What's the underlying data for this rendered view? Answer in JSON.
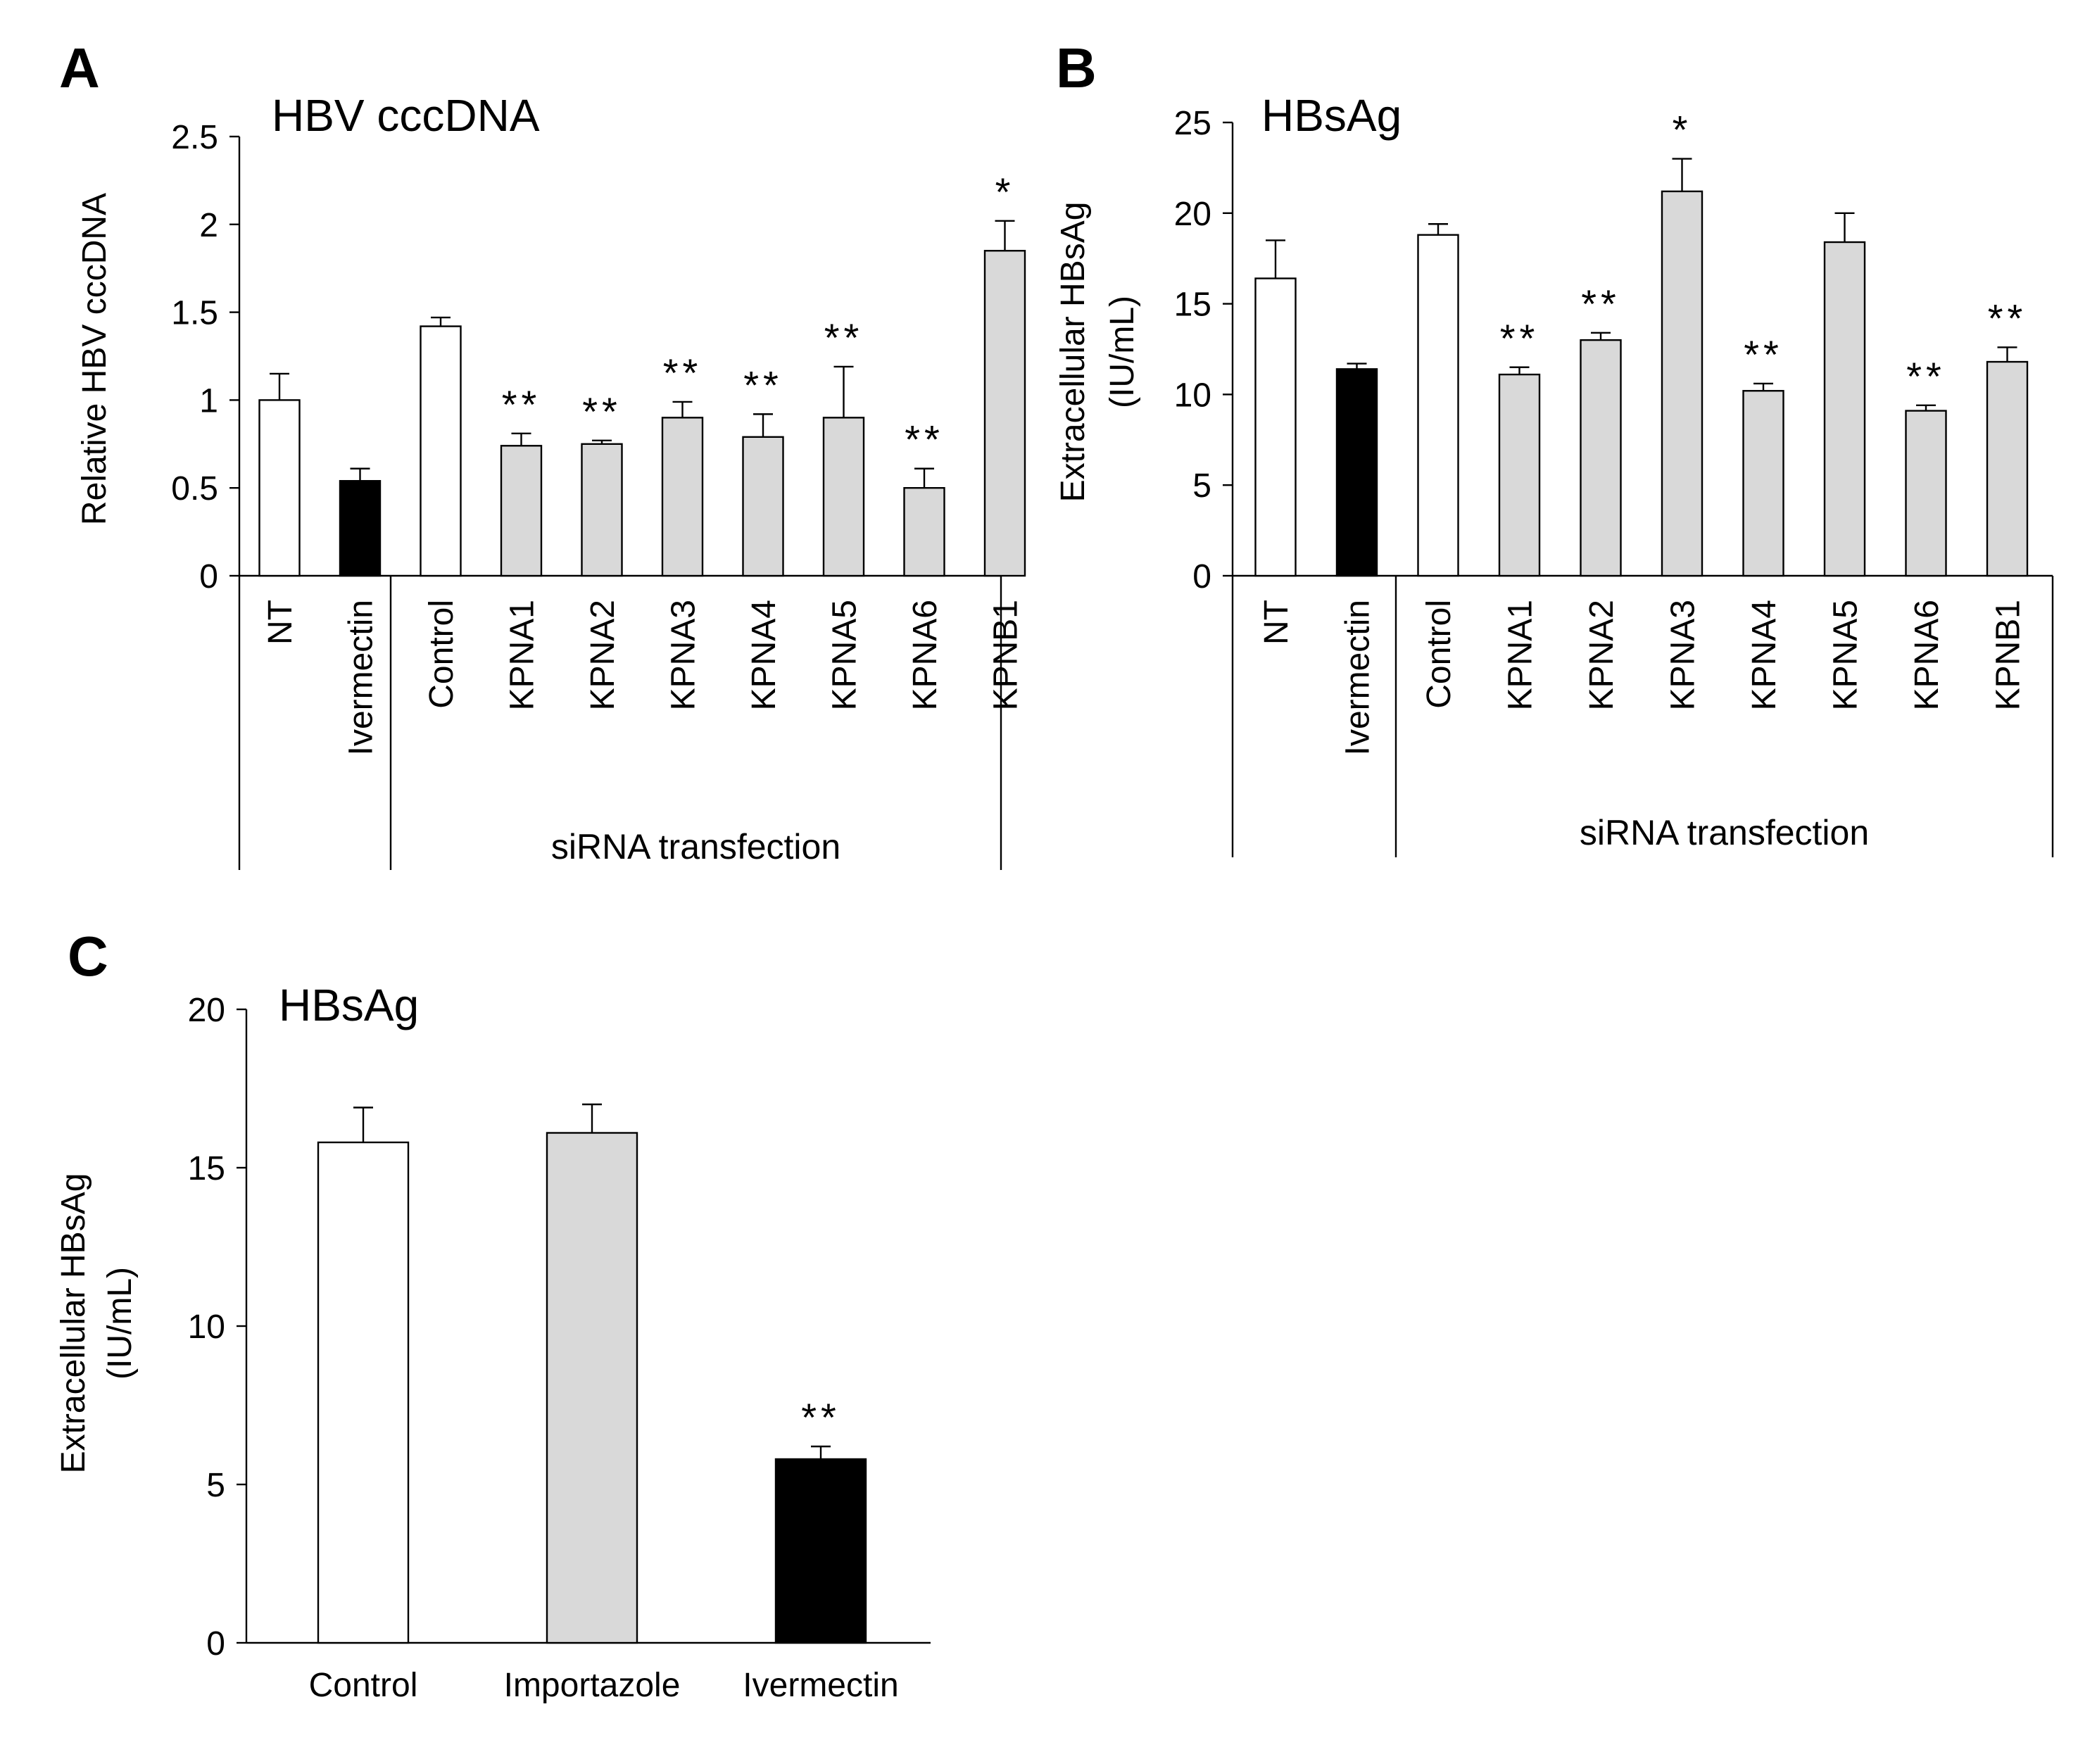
{
  "chart_data": [
    {
      "panel": "A",
      "type": "bar",
      "title": "HBV cccDNA",
      "ylabel": "Relative HBV cccDNA",
      "ylabel_line2": "",
      "ylim": [
        0,
        2.5
      ],
      "yticks": [
        "0",
        "0.5",
        "1",
        "1.5",
        "2",
        "2.5"
      ],
      "ytick_values": [
        0,
        0.5,
        1,
        1.5,
        2,
        2.5
      ],
      "categories": [
        "NT",
        "Ivermectin",
        "Control",
        "KPNA1",
        "KPNA2",
        "KPNA3",
        "KPNA4",
        "KPNA5",
        "KPNA6",
        "KPNB1"
      ],
      "values": [
        1.0,
        0.54,
        1.42,
        0.74,
        0.75,
        0.9,
        0.79,
        0.9,
        0.5,
        1.85
      ],
      "errors": [
        0.15,
        0.07,
        0.05,
        0.07,
        0.02,
        0.09,
        0.13,
        0.29,
        0.11,
        0.17
      ],
      "fill": [
        "white",
        "black",
        "white",
        "gray",
        "gray",
        "gray",
        "gray",
        "gray",
        "gray",
        "gray"
      ],
      "significance": [
        "",
        "",
        "",
        "**",
        "**",
        "**",
        "**",
        "**",
        "**",
        "*"
      ],
      "group_label": "siRNA transfection"
    },
    {
      "panel": "B",
      "type": "bar",
      "title": "HBsAg",
      "ylabel": "Extracellular HBsAg",
      "ylabel_line2": "(IU/mL)",
      "ylim": [
        0,
        25
      ],
      "yticks": [
        "0",
        "5",
        "10",
        "15",
        "20",
        "25"
      ],
      "ytick_values": [
        0,
        5,
        10,
        15,
        20,
        25
      ],
      "categories": [
        "NT",
        "Ivermectin",
        "Control",
        "KPNA1",
        "KPNA2",
        "KPNA3",
        "KPNA4",
        "KPNA5",
        "KPNA6",
        "KPNB1"
      ],
      "values": [
        16.4,
        11.4,
        18.8,
        11.1,
        13.0,
        21.2,
        10.2,
        18.4,
        9.1,
        11.8
      ],
      "errors": [
        2.1,
        0.3,
        0.6,
        0.4,
        0.4,
        1.8,
        0.4,
        1.6,
        0.3,
        0.8
      ],
      "fill": [
        "white",
        "black",
        "white",
        "gray",
        "gray",
        "gray",
        "gray",
        "gray",
        "gray",
        "gray"
      ],
      "significance": [
        "",
        "",
        "",
        "**",
        "**",
        "*",
        "**",
        "",
        "**",
        "**"
      ],
      "group_label": "siRNA transfection"
    },
    {
      "panel": "C",
      "type": "bar",
      "title": "HBsAg",
      "ylabel": "Extracellular HBsAg",
      "ylabel_line2": "(IU/mL)",
      "ylim": [
        0,
        20
      ],
      "yticks": [
        "0",
        "5",
        "10",
        "15",
        "20"
      ],
      "ytick_values": [
        0,
        5,
        10,
        15,
        20
      ],
      "categories": [
        "Control",
        "Importazole",
        "Ivermectin"
      ],
      "values": [
        15.8,
        16.1,
        5.8
      ],
      "errors": [
        1.1,
        0.9,
        0.4
      ],
      "fill": [
        "white",
        "gray",
        "black"
      ],
      "significance": [
        "",
        "",
        "**"
      ]
    }
  ],
  "colors": {
    "white": "#ffffff",
    "gray": "#d9d9d9",
    "black": "#000000"
  }
}
